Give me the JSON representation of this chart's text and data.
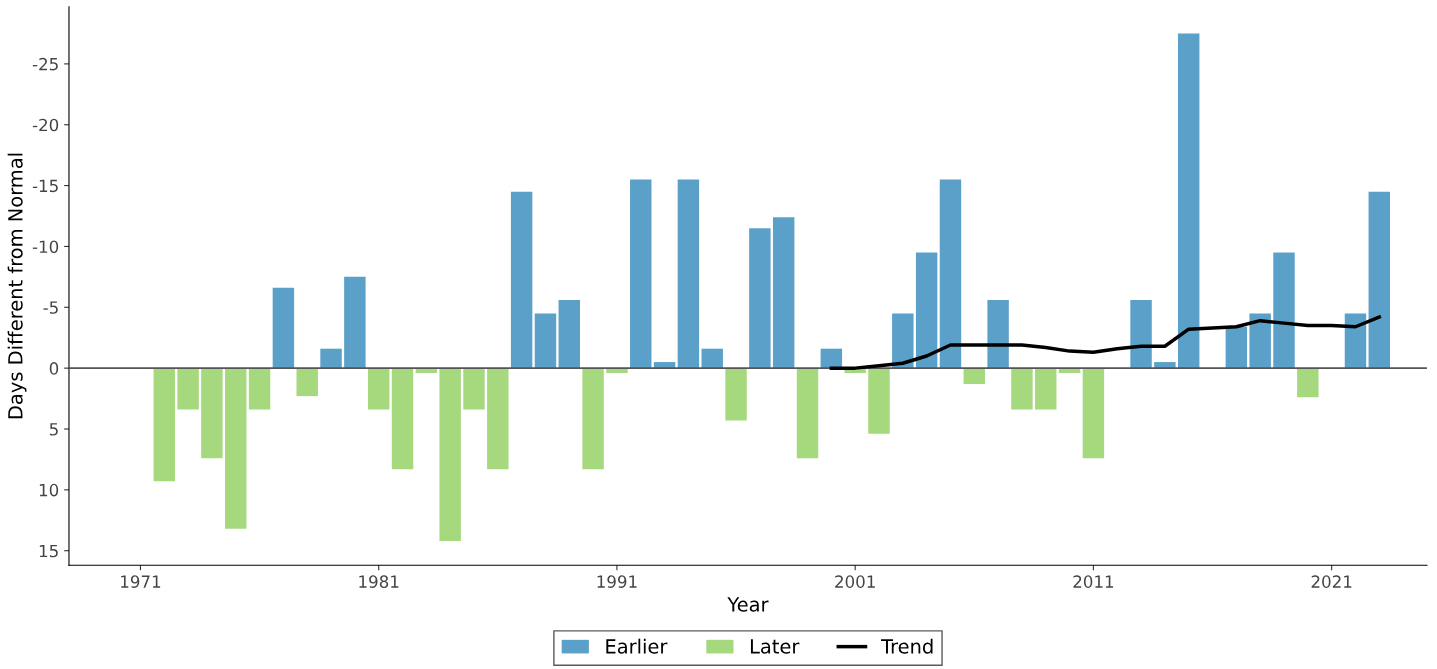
{
  "chart_data": {
    "type": "bar",
    "xlabel": "Year",
    "ylabel": "Days Different from Normal",
    "x": [
      1972,
      1973,
      1974,
      1975,
      1976,
      1977,
      1978,
      1979,
      1980,
      1981,
      1982,
      1983,
      1984,
      1985,
      1986,
      1987,
      1988,
      1989,
      1990,
      1991,
      1992,
      1993,
      1994,
      1995,
      1996,
      1997,
      1998,
      1999,
      2000,
      2001,
      2002,
      2003,
      2004,
      2005,
      2006,
      2007,
      2008,
      2009,
      2010,
      2011,
      2012,
      2013,
      2014,
      2015,
      2016,
      2017,
      2018,
      2019,
      2020,
      2021,
      2022,
      2023
    ],
    "series": [
      {
        "name": "Earlier",
        "color": "#5ba0c9",
        "values": [
          null,
          null,
          null,
          null,
          null,
          -6.6,
          null,
          -1.6,
          -7.5,
          null,
          null,
          null,
          null,
          null,
          null,
          -14.5,
          -4.5,
          -5.6,
          null,
          null,
          -15.5,
          -0.5,
          -15.5,
          -1.6,
          null,
          -11.5,
          -12.4,
          null,
          -1.6,
          null,
          null,
          -4.5,
          -9.5,
          -15.5,
          null,
          -5.6,
          null,
          null,
          null,
          null,
          null,
          -5.6,
          -0.5,
          -27.5,
          null,
          -3.4,
          -4.5,
          -9.5,
          null,
          null,
          -4.5,
          -14.5
        ]
      },
      {
        "name": "Later",
        "color": "#a6d97e",
        "values": [
          9.3,
          3.4,
          7.4,
          13.2,
          3.4,
          null,
          2.3,
          null,
          null,
          3.4,
          8.3,
          0.4,
          14.2,
          3.4,
          8.3,
          null,
          null,
          null,
          8.3,
          0.4,
          null,
          null,
          null,
          null,
          4.3,
          null,
          null,
          7.4,
          null,
          0.4,
          5.4,
          null,
          null,
          null,
          1.3,
          null,
          3.4,
          3.4,
          0.4,
          7.4,
          null,
          null,
          null,
          null,
          null,
          null,
          null,
          null,
          2.4,
          null,
          null,
          null
        ]
      },
      {
        "name": "Trend",
        "type": "line",
        "color": "#000000",
        "x": [
          2000,
          2001,
          2002,
          2003,
          2004,
          2005,
          2006,
          2007,
          2008,
          2009,
          2010,
          2011,
          2012,
          2013,
          2014,
          2015,
          2016,
          2017,
          2018,
          2019,
          2020,
          2021,
          2022,
          2023
        ],
        "values": [
          0,
          0,
          -0.2,
          -0.4,
          -1.0,
          -1.9,
          -1.9,
          -1.9,
          -1.9,
          -1.7,
          -1.4,
          -1.3,
          -1.6,
          -1.8,
          -1.8,
          -3.2,
          -3.3,
          -3.4,
          -3.9,
          -3.7,
          -3.5,
          -3.5,
          -3.4,
          -4.2
        ]
      }
    ],
    "xlim": [
      1968,
      2025
    ],
    "xticks": [
      1971,
      1981,
      1991,
      2001,
      2011,
      2021
    ],
    "ylim": [
      16.2,
      -29.7
    ],
    "yticks": [
      {
        "value": -25,
        "label": "-25"
      },
      {
        "value": -20,
        "label": "-20"
      },
      {
        "value": -15,
        "label": "-15"
      },
      {
        "value": -10,
        "label": "-10"
      },
      {
        "value": -5,
        "label": "-5"
      },
      0,
      5,
      10,
      15
    ],
    "ref_lines": [
      {
        "axis": "y",
        "value": 0,
        "color": "#555555"
      }
    ],
    "grid": false,
    "legend": "bottom"
  }
}
